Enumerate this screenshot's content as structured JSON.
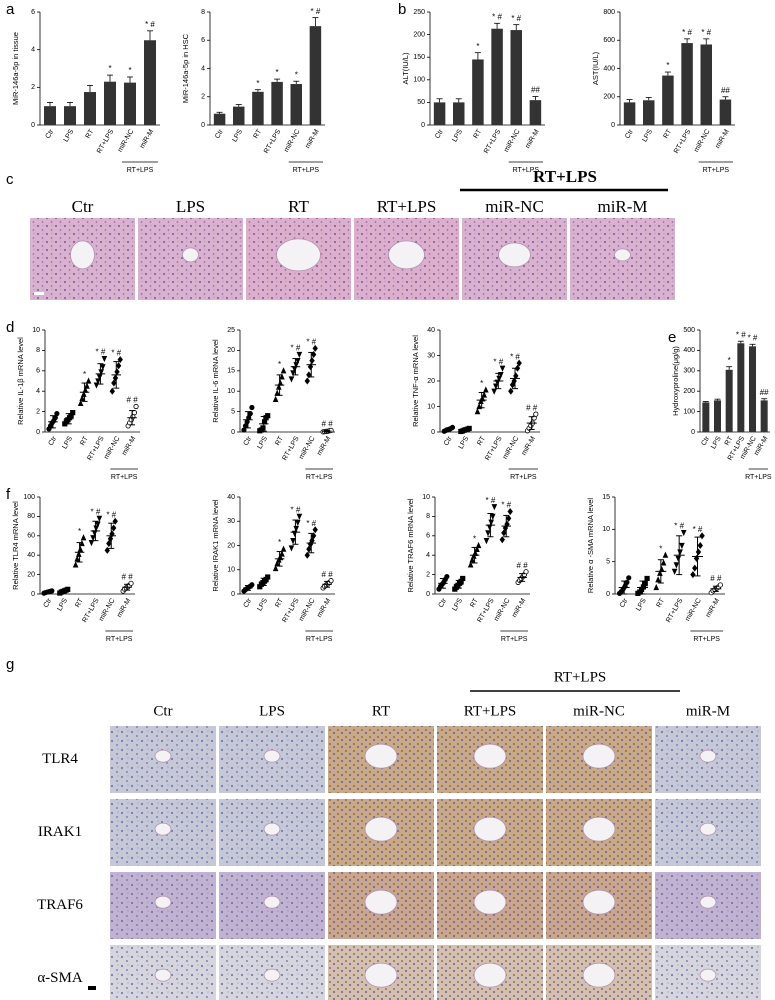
{
  "panel_labels": [
    "a",
    "b",
    "c",
    "d",
    "e",
    "f",
    "g"
  ],
  "histology_c": {
    "group_label": "RT+LPS",
    "columns": [
      "Ctr",
      "LPS",
      "RT",
      "RT+LPS",
      "miR-NC",
      "miR-M"
    ]
  },
  "histology_g": {
    "group_label": "RT+LPS",
    "columns": [
      "Ctr",
      "LPS",
      "RT",
      "RT+LPS",
      "miR-NC",
      "miR-M"
    ],
    "rows": [
      "TLR4",
      "IRAK1",
      "TRAF6",
      "α-SMA"
    ]
  },
  "chart_data": [
    {
      "type": "bar",
      "ylabel": "MiR-146a-5p in tissue",
      "categories": [
        "Ctr",
        "LPS",
        "RT",
        "RT+LPS",
        "miR-NC",
        "miR-M"
      ],
      "group_label": "RT+LPS",
      "color": "#333333",
      "values": [
        1.0,
        1.0,
        1.75,
        2.3,
        2.25,
        4.5
      ],
      "errors": [
        0.2,
        0.2,
        0.35,
        0.35,
        0.3,
        0.5
      ],
      "annotations": [
        null,
        null,
        null,
        "*",
        "*",
        "* #"
      ],
      "ylim": [
        0,
        6
      ],
      "yticks": [
        0,
        2,
        4,
        6
      ]
    },
    {
      "type": "bar",
      "ylabel": "MiR-146a-5p in HSC",
      "categories": [
        "Ctr",
        "LPS",
        "RT",
        "RT+LPS",
        "miR-NC",
        "miR-M"
      ],
      "group_label": "RT+LPS",
      "color": "#333333",
      "values": [
        0.8,
        1.3,
        2.35,
        3.05,
        2.9,
        7.0
      ],
      "errors": [
        0.1,
        0.15,
        0.15,
        0.2,
        0.2,
        0.6
      ],
      "annotations": [
        null,
        null,
        "*",
        "*",
        "*",
        "* #"
      ],
      "ylim": [
        0,
        8
      ],
      "yticks": [
        0,
        2,
        4,
        6,
        8
      ]
    },
    {
      "type": "bar",
      "ylabel": "ALT(IU/L)",
      "categories": [
        "Ctr",
        "LPS",
        "RT",
        "RT+LPS",
        "miR-NC",
        "miR-M"
      ],
      "group_label": "RT+LPS",
      "color": "#333333",
      "values": [
        50,
        50,
        145,
        213,
        210,
        55
      ],
      "errors": [
        8,
        8,
        15,
        12,
        12,
        8
      ],
      "annotations": [
        null,
        null,
        "*",
        "* #",
        "* #",
        "##"
      ],
      "ylim": [
        0,
        250
      ],
      "yticks": [
        0,
        50,
        100,
        150,
        200,
        250
      ]
    },
    {
      "type": "bar",
      "ylabel": "AST(IU/L)",
      "categories": [
        "Ctr",
        "LPS",
        "RT",
        "RT+LPS",
        "miR-NC",
        "miR-M"
      ],
      "group_label": "RT+LPS",
      "color": "#333333",
      "values": [
        160,
        175,
        350,
        580,
        570,
        180
      ],
      "errors": [
        20,
        20,
        25,
        30,
        40,
        20
      ],
      "annotations": [
        null,
        null,
        "*",
        "* #",
        "* #",
        "##"
      ],
      "ylim": [
        0,
        800
      ],
      "yticks": [
        0,
        200,
        400,
        600,
        800
      ]
    },
    {
      "type": "dot",
      "ylabel": "Relative IL-1β mRNA level",
      "categories": [
        "Ctr",
        "LPS",
        "RT",
        "RT+LPS",
        "miR-NC",
        "miR-M"
      ],
      "group_label": "RT+LPS",
      "color": "#000000",
      "markers": [
        "circle",
        "square",
        "triangle",
        "triangle-down",
        "diamond",
        "circle-open"
      ],
      "values": [
        1.0,
        1.3,
        3.9,
        5.7,
        5.6,
        1.4
      ],
      "errors": [
        0.6,
        0.5,
        0.9,
        1.0,
        1.3,
        0.7
      ],
      "annotations": [
        null,
        null,
        "*",
        "* #",
        "* #",
        "# #"
      ],
      "ylim": [
        0,
        10
      ],
      "yticks": [
        0,
        2,
        4,
        6,
        8,
        10
      ],
      "points": [
        [
          0.3,
          0.6,
          0.9,
          1.1,
          1.4,
          1.8
        ],
        [
          0.8,
          1.0,
          1.2,
          1.4,
          1.6,
          1.9
        ],
        [
          2.8,
          3.3,
          3.7,
          4.1,
          4.5,
          5.0
        ],
        [
          4.6,
          5.0,
          5.4,
          5.9,
          6.4,
          7.2
        ],
        [
          4.0,
          4.8,
          5.3,
          5.9,
          6.5,
          7.1
        ],
        [
          0.6,
          0.9,
          1.2,
          1.5,
          1.9,
          2.5
        ]
      ]
    },
    {
      "type": "dot",
      "ylabel": "Relative IL-6 mRNA level",
      "categories": [
        "Ctr",
        "LPS",
        "RT",
        "RT+LPS",
        "miR-NC",
        "miR-M"
      ],
      "group_label": "RT+LPS",
      "color": "#000000",
      "markers": [
        "circle",
        "square",
        "triangle",
        "triangle-down",
        "diamond",
        "circle-open"
      ],
      "values": [
        3,
        2,
        11.5,
        16,
        16.5,
        0.2
      ],
      "errors": [
        2,
        1.8,
        2.5,
        2,
        3,
        0.2
      ],
      "annotations": [
        null,
        null,
        "*",
        "* #",
        "* #",
        "# #"
      ],
      "ylim": [
        0,
        25
      ],
      "yticks": [
        0,
        5,
        10,
        15,
        20,
        25
      ],
      "points": [
        [
          0.5,
          1.5,
          2.5,
          3.5,
          4.5,
          6.0
        ],
        [
          0.3,
          0.5,
          1.0,
          2.5,
          3.5,
          4.0
        ],
        [
          8.0,
          9.5,
          11,
          12,
          13.5,
          15
        ],
        [
          13,
          14.5,
          15.5,
          16.5,
          17.5,
          19
        ],
        [
          12.5,
          14,
          16,
          17.5,
          19,
          20.5
        ],
        [
          0.05,
          0.1,
          0.15,
          0.2,
          0.3,
          0.4
        ]
      ]
    },
    {
      "type": "dot",
      "ylabel": "Relative TNF-α mRNA level",
      "categories": [
        "Ctr",
        "LPS",
        "RT",
        "RT+LPS",
        "miR-NC",
        "miR-M"
      ],
      "group_label": "RT+LPS",
      "color": "#000000",
      "markers": [
        "circle",
        "square",
        "triangle",
        "triangle-down",
        "diamond",
        "circle-open"
      ],
      "values": [
        1,
        0.8,
        12.5,
        20,
        21,
        3.5
      ],
      "errors": [
        0.6,
        0.5,
        3,
        3,
        4,
        2.5
      ],
      "annotations": [
        null,
        null,
        "*",
        "* #",
        "* #",
        "# #"
      ],
      "ylim": [
        0,
        40
      ],
      "yticks": [
        0,
        10,
        20,
        30,
        40
      ],
      "points": [
        [
          0.3,
          0.6,
          0.9,
          1.1,
          1.4,
          1.8
        ],
        [
          0.2,
          0.4,
          0.7,
          0.9,
          1.1,
          1.4
        ],
        [
          8,
          10,
          12,
          13,
          14.5,
          16.5
        ],
        [
          16,
          18,
          19.5,
          21,
          22.5,
          25
        ],
        [
          16,
          18.5,
          20,
          22,
          25,
          27
        ],
        [
          0.5,
          1.5,
          2.5,
          3.5,
          5.5,
          7
        ]
      ]
    },
    {
      "type": "bar",
      "ylabel": "Hydroxyproline(μg/g)",
      "categories": [
        "Ctr",
        "LPS",
        "RT",
        "RT+LPS",
        "miR-NC",
        "miR-M"
      ],
      "group_label": "RT+LPS",
      "color": "#333333",
      "values": [
        145,
        155,
        305,
        435,
        420,
        155
      ],
      "errors": [
        5,
        6,
        15,
        10,
        10,
        8
      ],
      "annotations": [
        null,
        null,
        "*",
        "* #",
        "* #",
        "##"
      ],
      "ylim": [
        0,
        500
      ],
      "yticks": [
        0,
        100,
        200,
        300,
        400,
        500
      ]
    },
    {
      "type": "dot",
      "ylabel": "Relative TLR4 mRNA level",
      "categories": [
        "Ctr",
        "LPS",
        "RT",
        "RT+LPS",
        "miR-NC",
        "miR-M"
      ],
      "group_label": "RT+LPS",
      "color": "#000000",
      "markers": [
        "circle",
        "square",
        "triangle",
        "triangle-down",
        "diamond",
        "circle-open"
      ],
      "values": [
        2,
        3,
        43,
        65,
        60,
        7
      ],
      "errors": [
        1,
        1.5,
        10,
        10,
        13,
        3
      ],
      "annotations": [
        null,
        null,
        "*",
        "* #",
        "* #",
        "# #"
      ],
      "ylim": [
        0,
        100
      ],
      "yticks": [
        0,
        20,
        40,
        60,
        80,
        100
      ],
      "points": [
        [
          0.8,
          1.5,
          2,
          2.3,
          2.7,
          3.2
        ],
        [
          1,
          2,
          2.7,
          3.3,
          4,
          4.8
        ],
        [
          30,
          36,
          41,
          46,
          52,
          58
        ],
        [
          53,
          58,
          63,
          68,
          72,
          78
        ],
        [
          45,
          52,
          57,
          62,
          68,
          75
        ],
        [
          3,
          5,
          6.5,
          7.5,
          9,
          11
        ]
      ]
    },
    {
      "type": "dot",
      "ylabel": "Relative IRAK1 mRNA level",
      "categories": [
        "Ctr",
        "LPS",
        "RT",
        "RT+LPS",
        "miR-NC",
        "miR-M"
      ],
      "group_label": "RT+LPS",
      "color": "#000000",
      "markers": [
        "circle",
        "square",
        "triangle",
        "triangle-down",
        "diamond",
        "circle-open"
      ],
      "values": [
        2.5,
        5,
        14.5,
        25.5,
        21,
        4
      ],
      "errors": [
        1,
        1.5,
        3,
        5,
        4,
        1.2
      ],
      "annotations": [
        null,
        null,
        "*",
        "* #",
        "* #",
        "# #"
      ],
      "ylim": [
        0,
        40
      ],
      "yticks": [
        0,
        10,
        20,
        30,
        40
      ],
      "points": [
        [
          1.2,
          1.8,
          2.3,
          2.8,
          3.2,
          3.8
        ],
        [
          3,
          4,
          4.7,
          5.3,
          6,
          7
        ],
        [
          10.5,
          12.5,
          14,
          15,
          16.5,
          18.5
        ],
        [
          19,
          22,
          25,
          27,
          29.5,
          32
        ],
        [
          16,
          18.5,
          20.5,
          22,
          24,
          26.5
        ],
        [
          2.5,
          3.2,
          3.8,
          4.2,
          4.8,
          5.5
        ]
      ]
    },
    {
      "type": "dot",
      "ylabel": "Relative TRAF6 mRNA level",
      "categories": [
        "Ctr",
        "LPS",
        "RT",
        "RT+LPS",
        "miR-NC",
        "miR-M"
      ],
      "group_label": "RT+LPS",
      "color": "#000000",
      "markers": [
        "circle",
        "square",
        "triangle",
        "triangle-down",
        "diamond",
        "circle-open"
      ],
      "values": [
        1.1,
        1.0,
        4.0,
        7.1,
        7.0,
        1.7
      ],
      "errors": [
        0.5,
        0.4,
        0.8,
        1.2,
        1.1,
        0.4
      ],
      "annotations": [
        null,
        null,
        "*",
        "* #",
        "* #",
        "# #"
      ],
      "ylim": [
        0,
        10
      ],
      "yticks": [
        0,
        2,
        4,
        6,
        8,
        10
      ],
      "points": [
        [
          0.5,
          0.8,
          1.0,
          1.2,
          1.5,
          1.8
        ],
        [
          0.5,
          0.7,
          0.9,
          1.1,
          1.3,
          1.6
        ],
        [
          3.0,
          3.5,
          3.9,
          4.2,
          4.6,
          5.0
        ],
        [
          5.5,
          6.3,
          6.9,
          7.4,
          8.0,
          9.0
        ],
        [
          5.6,
          6.3,
          6.8,
          7.2,
          7.8,
          8.5
        ],
        [
          1.2,
          1.4,
          1.6,
          1.8,
          2.0,
          2.3
        ]
      ]
    },
    {
      "type": "dot",
      "ylabel": "Relative α -SMA mRNA level",
      "categories": [
        "Ctr",
        "LPS",
        "RT",
        "RT+LPS",
        "miR-NC",
        "miR-M"
      ],
      "group_label": "RT+LPS",
      "color": "#000000",
      "markers": [
        "circle",
        "square",
        "triangle",
        "triangle-down",
        "diamond",
        "circle-open"
      ],
      "values": [
        1,
        1,
        3.5,
        6,
        5.8,
        0.8
      ],
      "errors": [
        1,
        1,
        1.8,
        3,
        3,
        0.4
      ],
      "annotations": [
        null,
        null,
        "*",
        "* #",
        "* #",
        "# #"
      ],
      "ylim": [
        0,
        15
      ],
      "yticks": [
        0,
        5,
        10,
        15
      ],
      "points": [
        [
          0.1,
          0.4,
          0.8,
          1.2,
          1.8,
          2.5
        ],
        [
          0.1,
          0.3,
          0.7,
          1.1,
          1.6,
          2.4
        ],
        [
          1.0,
          2.2,
          3.2,
          3.8,
          4.8,
          6.0
        ],
        [
          3.5,
          4.5,
          5.5,
          6.5,
          7.5,
          9.5
        ],
        [
          3,
          4,
          5.5,
          6.5,
          7.5,
          9
        ],
        [
          0.2,
          0.5,
          0.7,
          0.9,
          1.1,
          1.4
        ]
      ]
    }
  ]
}
